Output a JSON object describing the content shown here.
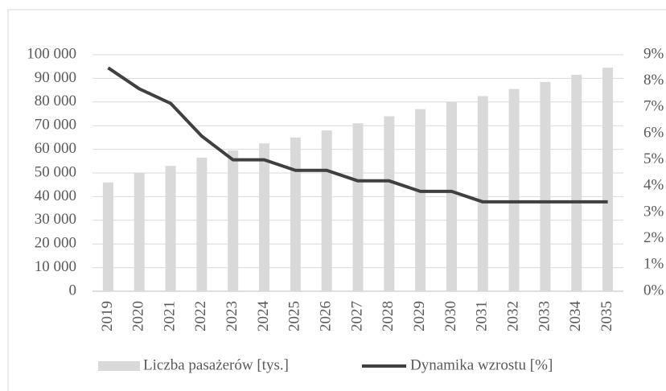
{
  "chart_data": {
    "type": "combo",
    "categories": [
      "2019",
      "2020",
      "2021",
      "2022",
      "2023",
      "2024",
      "2025",
      "2026",
      "2027",
      "2028",
      "2029",
      "2030",
      "2031",
      "2032",
      "2033",
      "2034",
      "2035"
    ],
    "series": [
      {
        "name": "Liczba pasażerów [tys.]",
        "type": "bar",
        "color": "#d9d9d9",
        "axis": "y",
        "values": [
          46000,
          50000,
          53000,
          56500,
          59500,
          62500,
          65000,
          68000,
          71000,
          74000,
          77000,
          80000,
          82500,
          85500,
          88500,
          91500,
          94500
        ]
      },
      {
        "name": "Dynamika wzrostu [%]",
        "type": "line",
        "color": "#404040",
        "axis": "y2",
        "values": [
          8.5,
          7.7,
          7.15,
          5.9,
          5.0,
          5.0,
          4.6,
          4.6,
          4.2,
          4.2,
          3.8,
          3.8,
          3.4,
          3.4,
          3.4,
          3.4,
          3.4
        ]
      }
    ],
    "ylim": [
      0,
      100000
    ],
    "yticks": [
      0,
      {
        "value": 10000,
        "label": "10 000"
      },
      {
        "value": 20000,
        "label": "20 000"
      },
      {
        "value": 30000,
        "label": "30 000"
      },
      {
        "value": 40000,
        "label": "40 000"
      },
      {
        "value": 50000,
        "label": "50 000"
      },
      {
        "value": 60000,
        "label": "60 000"
      },
      {
        "value": 70000,
        "label": "70 000"
      },
      {
        "value": 80000,
        "label": "80 000"
      },
      {
        "value": 90000,
        "label": "90 000"
      },
      {
        "value": 100000,
        "label": "100 000"
      }
    ],
    "y2lim": [
      0,
      9
    ],
    "y2ticks": [
      {
        "value": 0,
        "label": "0%"
      },
      {
        "value": 1,
        "label": "1%"
      },
      {
        "value": 2,
        "label": "2%"
      },
      {
        "value": 3,
        "label": "3%"
      },
      {
        "value": 4,
        "label": "4%"
      },
      {
        "value": 5,
        "label": "5%"
      },
      {
        "value": 6,
        "label": "6%"
      },
      {
        "value": 7,
        "label": "7%"
      },
      {
        "value": 8,
        "label": "8%"
      },
      {
        "value": 9,
        "label": "9%"
      }
    ],
    "grid": true,
    "legend": "bottom"
  }
}
